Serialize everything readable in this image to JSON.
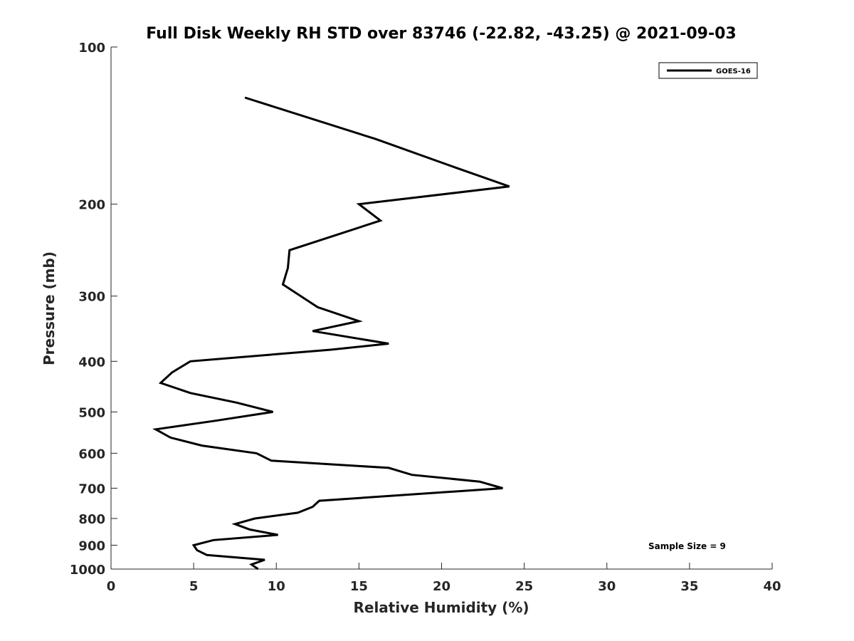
{
  "chart_data": {
    "type": "line",
    "title": "Full Disk Weekly RH STD over 83746 (-22.82, -43.25) @ 2021-09-03",
    "xlabel": "Relative Humidity (%)",
    "ylabel": "Pressure (mb)",
    "xlim": [
      0,
      40
    ],
    "ylim": [
      100,
      1000
    ],
    "y_scale": "log",
    "y_reversed": true,
    "x_ticks": [
      0,
      5,
      10,
      15,
      20,
      25,
      30,
      35,
      40
    ],
    "y_ticks": [
      100,
      200,
      300,
      400,
      500,
      600,
      700,
      800,
      900,
      1000
    ],
    "grid": false,
    "legend_position": "top-right",
    "annotation": "Sample Size = 9",
    "line_color": "#000000",
    "series": [
      {
        "name": "GOES-16",
        "x": [
          8.1,
          16.0,
          20.8,
          24.1,
          15.0,
          16.3,
          10.8,
          10.7,
          10.4,
          12.5,
          15.0,
          12.2,
          16.8,
          13.3,
          4.8,
          3.7,
          3.0,
          4.8,
          7.6,
          9.8,
          6.3,
          2.7,
          3.6,
          5.5,
          8.8,
          9.7,
          16.8,
          18.2,
          22.3,
          23.7,
          12.6,
          12.2,
          11.3,
          8.7,
          7.5,
          8.4,
          10.1,
          6.2,
          5.0,
          5.2,
          5.8,
          9.3,
          8.5,
          8.9
        ],
        "y": [
          125,
          150,
          170,
          185,
          200,
          215,
          245,
          265,
          285,
          315,
          335,
          350,
          370,
          380,
          400,
          420,
          440,
          460,
          480,
          500,
          520,
          540,
          560,
          580,
          600,
          620,
          640,
          660,
          680,
          700,
          740,
          760,
          780,
          800,
          820,
          840,
          860,
          880,
          900,
          920,
          940,
          960,
          980,
          1000
        ]
      }
    ]
  }
}
